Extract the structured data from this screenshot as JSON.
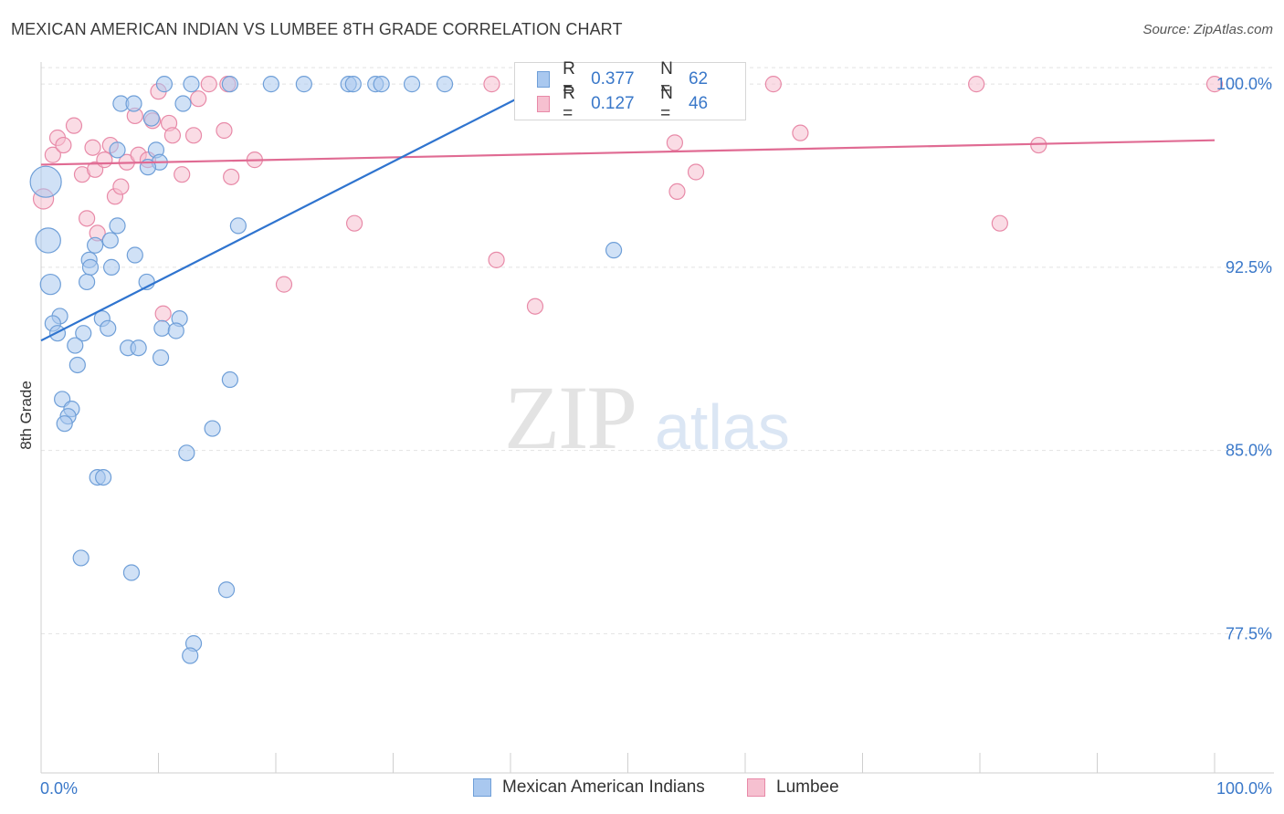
{
  "title": "MEXICAN AMERICAN INDIAN VS LUMBEE 8TH GRADE CORRELATION CHART",
  "source": "Source: ZipAtlas.com",
  "watermark": {
    "zip": "ZIP",
    "atlas": "atlas"
  },
  "legend": {
    "rows": [
      {
        "r_label": "R =",
        "r_value": "0.377",
        "n_label": "N =",
        "n_value": "62"
      },
      {
        "r_label": "R =",
        "r_value": "0.127",
        "n_label": "N =",
        "n_value": "46"
      }
    ]
  },
  "colors": {
    "blue_fill": "#a9c8ef",
    "blue_stroke": "#6f9fd8",
    "blue_line": "#2f74cf",
    "pink_fill": "#f6c0d0",
    "pink_stroke": "#e88aa8",
    "pink_line": "#e06b93",
    "tick_label": "#3a78c9",
    "grid": "#e2e2e2"
  },
  "chart_data": {
    "type": "scatter",
    "title": "MEXICAN AMERICAN INDIAN VS LUMBEE 8TH GRADE CORRELATION CHART",
    "xlabel": "",
    "ylabel": "8th Grade",
    "xlim": [
      0,
      100
    ],
    "ylim": [
      71.8,
      101.2
    ],
    "x_tick_labels": [
      "0.0%",
      "100.0%"
    ],
    "y_ticks": [
      77.5,
      85.0,
      92.5,
      100.0
    ],
    "y_tick_labels": [
      "77.5%",
      "85.0%",
      "92.5%",
      "100.0%"
    ],
    "grid": true,
    "legend_position": "top-center",
    "series": [
      {
        "name": "Mexican American Indians",
        "color": "#a9c8ef",
        "trend": {
          "x": [
            0.0,
            43.0
          ],
          "y": [
            89.5,
            100.0
          ]
        },
        "points": [
          [
            0.4,
            96.0,
            2
          ],
          [
            0.6,
            93.6,
            1.6
          ],
          [
            0.8,
            91.8,
            1.3
          ],
          [
            10.5,
            100.0,
            1
          ],
          [
            12.8,
            100.0,
            1
          ],
          [
            16.1,
            100.0,
            1
          ],
          [
            19.6,
            100.0,
            1
          ],
          [
            22.4,
            100.0,
            1
          ],
          [
            26.2,
            100.0,
            1
          ],
          [
            26.6,
            100.0,
            1
          ],
          [
            28.5,
            100.0,
            1
          ],
          [
            29.0,
            100.0,
            1
          ],
          [
            31.6,
            100.0,
            1
          ],
          [
            34.4,
            100.0,
            1
          ],
          [
            6.8,
            99.2,
            1
          ],
          [
            7.9,
            99.2,
            1
          ],
          [
            12.1,
            99.2,
            1
          ],
          [
            9.4,
            98.6,
            1
          ],
          [
            6.5,
            97.3,
            1
          ],
          [
            9.8,
            97.3,
            1
          ],
          [
            10.1,
            96.8,
            1
          ],
          [
            9.1,
            96.6,
            1
          ],
          [
            16.8,
            94.2,
            1
          ],
          [
            6.5,
            94.2,
            1
          ],
          [
            5.9,
            93.6,
            1
          ],
          [
            4.6,
            93.4,
            1
          ],
          [
            8.0,
            93.0,
            1
          ],
          [
            4.1,
            92.8,
            1
          ],
          [
            4.2,
            92.5,
            1
          ],
          [
            6.0,
            92.5,
            1
          ],
          [
            3.9,
            91.9,
            1
          ],
          [
            9.0,
            91.9,
            1
          ],
          [
            1.6,
            90.5,
            1
          ],
          [
            1.0,
            90.2,
            1
          ],
          [
            5.2,
            90.4,
            1
          ],
          [
            11.8,
            90.4,
            1
          ],
          [
            5.7,
            90.0,
            1
          ],
          [
            10.3,
            90.0,
            1
          ],
          [
            11.5,
            89.9,
            1
          ],
          [
            1.4,
            89.8,
            1
          ],
          [
            3.6,
            89.8,
            1
          ],
          [
            2.9,
            89.3,
            1
          ],
          [
            7.4,
            89.2,
            1
          ],
          [
            8.3,
            89.2,
            1
          ],
          [
            10.2,
            88.8,
            1
          ],
          [
            3.1,
            88.5,
            1
          ],
          [
            16.1,
            87.9,
            1
          ],
          [
            1.8,
            87.1,
            1
          ],
          [
            2.6,
            86.7,
            1
          ],
          [
            2.3,
            86.4,
            1
          ],
          [
            2.0,
            86.1,
            1
          ],
          [
            14.6,
            85.9,
            1
          ],
          [
            12.4,
            84.9,
            1
          ],
          [
            4.8,
            83.9,
            1
          ],
          [
            5.3,
            83.9,
            1
          ],
          [
            3.4,
            80.6,
            1
          ],
          [
            7.7,
            80.0,
            1
          ],
          [
            15.8,
            79.3,
            1
          ],
          [
            13.0,
            77.1,
            1
          ],
          [
            12.7,
            76.6,
            1
          ],
          [
            48.8,
            93.2,
            1
          ],
          [
            43.0,
            99.9,
            1
          ]
        ]
      },
      {
        "name": "Lumbee",
        "color": "#f6c0d0",
        "trend": {
          "x": [
            0.0,
            100.0
          ],
          "y": [
            96.7,
            97.7
          ]
        },
        "points": [
          [
            0.2,
            95.3,
            1.3
          ],
          [
            1.0,
            97.1,
            1
          ],
          [
            1.4,
            97.8,
            1
          ],
          [
            1.9,
            97.5,
            1
          ],
          [
            2.8,
            98.3,
            1
          ],
          [
            3.5,
            96.3,
            1
          ],
          [
            3.9,
            94.5,
            1
          ],
          [
            4.4,
            97.4,
            1
          ],
          [
            4.6,
            96.5,
            1
          ],
          [
            4.8,
            93.9,
            1
          ],
          [
            5.4,
            96.9,
            1
          ],
          [
            5.9,
            97.5,
            1
          ],
          [
            6.3,
            95.4,
            1
          ],
          [
            6.8,
            95.8,
            1
          ],
          [
            7.3,
            96.8,
            1
          ],
          [
            8.0,
            98.7,
            1
          ],
          [
            8.3,
            97.1,
            1
          ],
          [
            9.1,
            96.9,
            1
          ],
          [
            9.5,
            98.5,
            1
          ],
          [
            10.0,
            99.7,
            1
          ],
          [
            10.4,
            90.6,
            1
          ],
          [
            10.9,
            98.4,
            1
          ],
          [
            11.2,
            97.9,
            1
          ],
          [
            12.0,
            96.3,
            1
          ],
          [
            13.0,
            97.9,
            1
          ],
          [
            13.4,
            99.4,
            1
          ],
          [
            14.3,
            100.0,
            1
          ],
          [
            15.9,
            100.0,
            1
          ],
          [
            15.6,
            98.1,
            1
          ],
          [
            16.2,
            96.2,
            1
          ],
          [
            18.2,
            96.9,
            1
          ],
          [
            20.7,
            91.8,
            1
          ],
          [
            26.7,
            94.3,
            1
          ],
          [
            38.8,
            92.8,
            1
          ],
          [
            42.1,
            90.9,
            1
          ],
          [
            38.4,
            100.0,
            1
          ],
          [
            52.3,
            100.0,
            1
          ],
          [
            54.0,
            97.6,
            1
          ],
          [
            54.2,
            95.6,
            1
          ],
          [
            55.8,
            96.4,
            1
          ],
          [
            62.4,
            100.0,
            1
          ],
          [
            64.7,
            98.0,
            1
          ],
          [
            79.7,
            100.0,
            1
          ],
          [
            81.7,
            94.3,
            1
          ],
          [
            85.0,
            97.5,
            1
          ],
          [
            100.0,
            100.0,
            1
          ]
        ]
      }
    ]
  }
}
